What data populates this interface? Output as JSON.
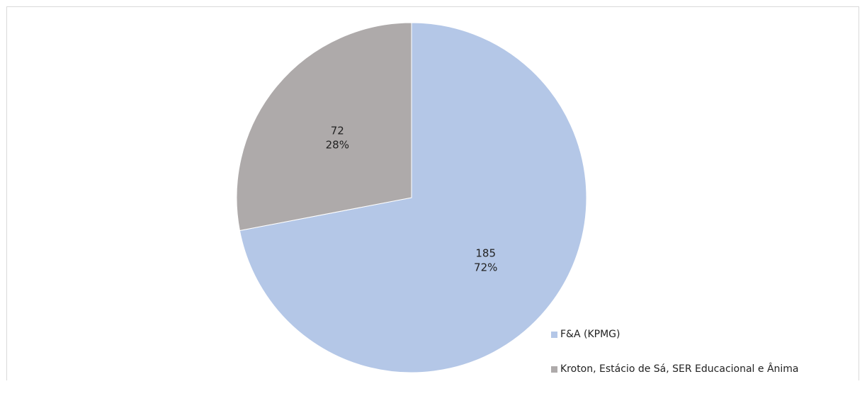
{
  "chart_data": {
    "type": "pie",
    "start_angle_deg": 0,
    "direction": "clockwise",
    "legend_position": "bottom-right",
    "slices": [
      {
        "name": "F&A (KPMG)",
        "value": 185,
        "percent_label": "72%",
        "color": "#b4c7e7"
      },
      {
        "name": "Kroton, Estácio de Sá, SER Educacional e Ânima",
        "value": 72,
        "percent_label": "28%",
        "color": "#aeaaaa"
      }
    ]
  }
}
